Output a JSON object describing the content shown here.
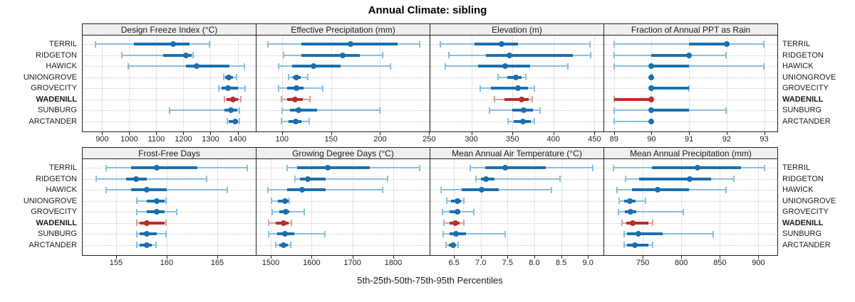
{
  "title": "Annual Climate: sibling",
  "caption": "5th-25th-50th-75th-95th Percentiles",
  "percentile_labels": [
    "5th",
    "25th",
    "50th",
    "75th",
    "95th"
  ],
  "locations": [
    "TERRIL",
    "RIDGETON",
    "HAWICK",
    "UNIONGROVE",
    "GROVECITY",
    "WADENILL",
    "SUNBURG",
    "ARCTANDER"
  ],
  "highlighted_location": "WADENILL",
  "colors": {
    "blue": "#1B6FAF",
    "blue_light": "#8ABFE0",
    "red": "#BF2B2B",
    "red_light": "#DE9C9C",
    "grid": "#C9C9C9",
    "strip_bg": "#EFEFEF",
    "border": "#222222",
    "text": "#1A1A1A"
  },
  "chart_data": [
    {
      "type": "dot-interval",
      "title": "Design Freeze Index (°C)",
      "panel_row": 0,
      "xlim": [
        828,
        1467
      ],
      "ticks": [
        "900",
        "1000",
        "1100",
        "1200",
        "1300",
        "1400"
      ],
      "values": [
        [
          873,
          1017,
          1163,
          1223,
          1297
        ],
        [
          970,
          1125,
          1210,
          1230,
          1237
        ],
        [
          995,
          1210,
          1248,
          1370,
          1425
        ],
        [
          1348,
          1355,
          1367,
          1383,
          1397
        ],
        [
          1330,
          1340,
          1365,
          1400,
          1428
        ],
        [
          1350,
          1360,
          1383,
          1400,
          1412
        ],
        [
          1148,
          1350,
          1374,
          1398,
          1408
        ],
        [
          1360,
          1367,
          1391,
          1402,
          1409
        ]
      ]
    },
    {
      "type": "dot-interval",
      "title": "Effective Precipitation (mm)",
      "panel_row": 0,
      "xlim": [
        74,
        250.5
      ],
      "ticks": [
        "100",
        "150",
        "200",
        "250"
      ],
      "values": [
        [
          85,
          120,
          170,
          218,
          241
        ],
        [
          101,
          120,
          162,
          179,
          203
        ],
        [
          96,
          110,
          132,
          160,
          211
        ],
        [
          106,
          111,
          115,
          119,
          127
        ],
        [
          96,
          105,
          115,
          122,
          142
        ],
        [
          99,
          105,
          113,
          121,
          129
        ],
        [
          100,
          108,
          117,
          136,
          200
        ],
        [
          99,
          107,
          114,
          120,
          128
        ]
      ]
    },
    {
      "type": "dot-interval",
      "title": "Elevation (m)",
      "panel_row": 0,
      "xlim": [
        250,
        461
      ],
      "ticks": [
        "300",
        "350",
        "400",
        "450"
      ],
      "values": [
        [
          262,
          304,
          337,
          357,
          445
        ],
        [
          272,
          318,
          346,
          424,
          446
        ],
        [
          268,
          308,
          341,
          372,
          418
        ],
        [
          332,
          344,
          354,
          361,
          367
        ],
        [
          310,
          324,
          357,
          369,
          377
        ],
        [
          328,
          340,
          361,
          370,
          375
        ],
        [
          322,
          350,
          364,
          375,
          384
        ],
        [
          344,
          352,
          363,
          372,
          377
        ]
      ]
    },
    {
      "type": "dot-interval",
      "title": "Fraction of Annual PPT as Rain",
      "panel_row": 0,
      "xlim": [
        88.74,
        93.35
      ],
      "ticks": [
        "89",
        "90",
        "91",
        "92",
        "93"
      ],
      "values": [
        [
          89,
          91,
          92,
          92,
          93
        ],
        [
          89,
          90,
          91,
          91,
          92
        ],
        [
          89,
          90,
          90,
          91,
          93
        ],
        [
          90,
          90,
          90,
          90,
          90
        ],
        [
          90,
          90,
          90,
          91,
          91
        ],
        [
          89,
          89,
          90,
          90,
          90
        ],
        [
          89,
          90,
          90,
          91,
          92
        ],
        [
          89,
          90,
          90,
          90,
          90
        ]
      ]
    },
    {
      "type": "dot-interval",
      "title": "Frost-Free Days",
      "panel_row": 1,
      "xlim": [
        151.7,
        168.8
      ],
      "ticks": [
        "155",
        "160",
        "165"
      ],
      "values": [
        [
          154,
          156.5,
          159,
          163,
          168
        ],
        [
          153,
          156,
          157,
          158,
          164
        ],
        [
          154,
          156.5,
          158,
          160,
          166
        ],
        [
          157,
          158,
          159,
          159.8,
          160
        ],
        [
          157,
          158,
          159,
          159.8,
          161
        ],
        [
          157,
          157.3,
          158,
          159.8,
          160
        ],
        [
          157,
          157.3,
          158,
          159,
          160
        ],
        [
          157,
          157.3,
          158,
          158.5,
          159
        ]
      ]
    },
    {
      "type": "dot-interval",
      "title": "Growing Degree Days (°C)",
      "panel_row": 1,
      "xlim": [
        1465,
        1889
      ],
      "ticks": [
        "1500",
        "1600",
        "1700",
        "1800"
      ],
      "values": [
        [
          1540,
          1565,
          1640,
          1743,
          1865
        ],
        [
          1558,
          1572,
          1590,
          1635,
          1787
        ],
        [
          1492,
          1540,
          1576,
          1635,
          1774
        ],
        [
          1500,
          1518,
          1535,
          1543,
          1547
        ],
        [
          1503,
          1520,
          1536,
          1545,
          1582
        ],
        [
          1494,
          1512,
          1532,
          1543,
          1552
        ],
        [
          1493,
          1515,
          1535,
          1558,
          1633
        ],
        [
          1512,
          1520,
          1532,
          1542,
          1549
        ]
      ]
    },
    {
      "type": "dot-interval",
      "title": "Mean Annual Air Temperature (°C)",
      "panel_row": 1,
      "xlim": [
        6.06,
        9.29
      ],
      "ticks": [
        "6.5",
        "7.0",
        "7.5",
        "8.0",
        "8.5",
        "9.0"
      ],
      "values": [
        [
          6.8,
          7.09,
          7.46,
          8.22,
          9.1
        ],
        [
          6.91,
          7.0,
          7.1,
          7.26,
          8.48
        ],
        [
          6.25,
          6.65,
          7.02,
          7.33,
          8.32
        ],
        [
          6.36,
          6.45,
          6.57,
          6.63,
          6.69
        ],
        [
          6.28,
          6.42,
          6.56,
          6.62,
          6.88
        ],
        [
          6.31,
          6.42,
          6.53,
          6.6,
          6.69
        ],
        [
          6.29,
          6.42,
          6.54,
          6.73,
          7.46
        ],
        [
          6.35,
          6.41,
          6.48,
          6.53,
          6.58
        ]
      ]
    },
    {
      "type": "dot-interval",
      "title": "Mean Annual Precipitation (mm)",
      "panel_row": 1,
      "xlim": [
        700,
        924.5
      ],
      "ticks": [
        "750",
        "800",
        "850",
        "900"
      ],
      "values": [
        [
          712,
          762,
          821,
          877,
          908
        ],
        [
          727,
          745,
          811,
          839,
          869
        ],
        [
          716,
          736,
          769,
          810,
          858
        ],
        [
          719,
          726,
          733,
          741,
          754
        ],
        [
          718,
          727,
          734,
          742,
          803
        ],
        [
          723,
          729,
          737,
          757,
          763
        ],
        [
          725,
          730,
          744,
          776,
          842
        ],
        [
          725,
          730,
          740,
          757,
          763
        ]
      ]
    }
  ]
}
